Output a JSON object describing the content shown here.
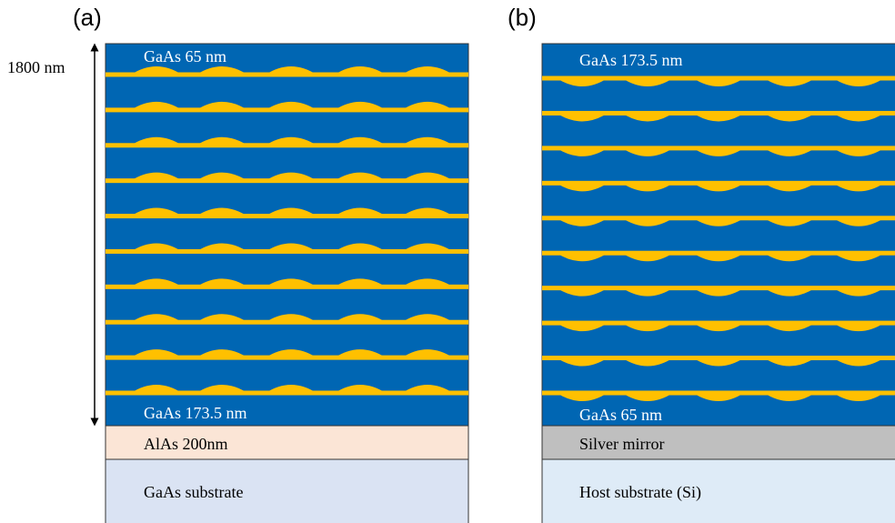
{
  "panels": [
    {
      "label": "(a)",
      "top_layer": "GaAs  65 nm",
      "bottom_layer": "GaAs  173.5 nm",
      "middle_layer": "AlAs 200nm",
      "substrate": "GaAs substrate"
    },
    {
      "label": "(b)",
      "top_layer": "GaAs  173.5 nm",
      "bottom_layer": "GaAs  65 nm",
      "middle_layer": "Silver mirror",
      "substrate": "Host substrate (Si)"
    }
  ],
  "thickness_label": "1800 nm"
}
